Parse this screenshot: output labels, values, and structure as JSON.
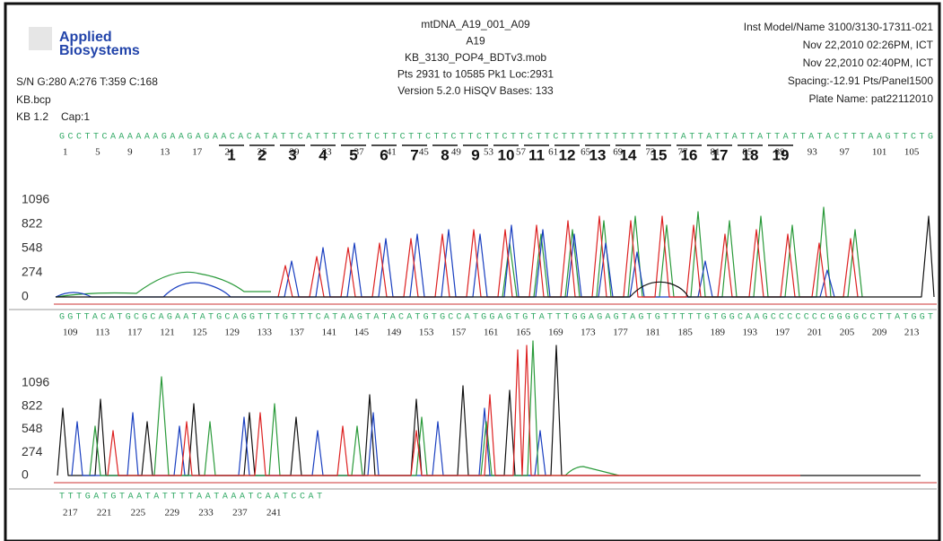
{
  "header": {
    "logo": [
      "Applied",
      "Biosystems"
    ],
    "left": [
      "S/N G:280 A:276 T:359 C:168",
      "KB.bcp",
      "KB 1.2"
    ],
    "cap": "Cap:1",
    "center": [
      "mtDNA_A19_001_A09",
      "A19",
      "KB_3130_POP4_BDTv3.mob",
      "Pts 2931 to 10585 Pk1 Loc:2931",
      "Version 5.2.0   HiSQV Bases: 133"
    ],
    "right": [
      "Inst Model/Name 3100/3130-17311-021",
      "Nov 22,2010 02:26PM, ICT",
      "Nov 22,2010 02:40PM, ICT",
      "Spacing:-12.91  Pts/Panel1500",
      "Plate Name: pat22112010"
    ]
  },
  "y_axis": [
    1096,
    822,
    548,
    274,
    0
  ],
  "panels": [
    {
      "sequence": "GCCTTCAAAAAAGAAGAGAACACATATTCATTTTCTTCTTCTTCTTCTTCTTCTTCTTCTTTTTTTTTTTTTTATTATTATTATTATTATACTTTAAGTTCTG",
      "positions": [
        1,
        5,
        9,
        13,
        17,
        21,
        25,
        29,
        33,
        37,
        41,
        45,
        49,
        53,
        57,
        61,
        65,
        69,
        73,
        77,
        81,
        85,
        89,
        93,
        97,
        101,
        105
      ],
      "markers": [
        1,
        2,
        3,
        4,
        5,
        6,
        7,
        8,
        9,
        10,
        11,
        12,
        13,
        14,
        15,
        16,
        17,
        18,
        19
      ]
    },
    {
      "sequence": "GGTTACATGCGCAGAATATGCAGGTTTGTTTCATAAGTATACATGTGCCATGGAGTGTATTTGGAGAGTAGTGTTTTTGTGGCAAGCCCCCCCGGGGCCTTATGGT",
      "positions": [
        109,
        113,
        117,
        121,
        125,
        129,
        133,
        137,
        141,
        145,
        149,
        153,
        157,
        161,
        165,
        169,
        173,
        177,
        181,
        185,
        189,
        193,
        197,
        201,
        205,
        209,
        213
      ]
    },
    {
      "sequence": "TTTGATGTAATATTTTAATAAATCAATCCAT",
      "positions": [
        217,
        221,
        225,
        229,
        233,
        237,
        241
      ]
    }
  ]
}
